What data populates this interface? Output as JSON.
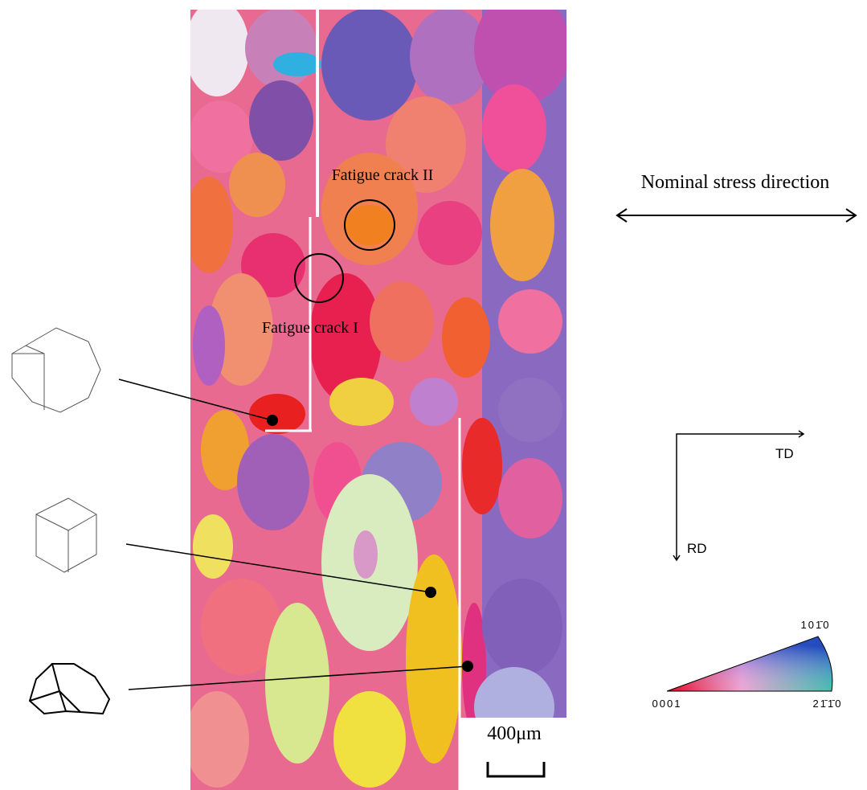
{
  "figure": {
    "crack_labels": [
      "Fatigue crack II",
      "Fatigue crack I"
    ],
    "stress_label": "Nominal stress direction",
    "axes": {
      "x_label": "TD",
      "y_label": "RD"
    },
    "scale_bar": "400μm",
    "ipf_labels": {
      "top": "101̄0",
      "left": "0001",
      "right": "21̄1̄0"
    }
  }
}
